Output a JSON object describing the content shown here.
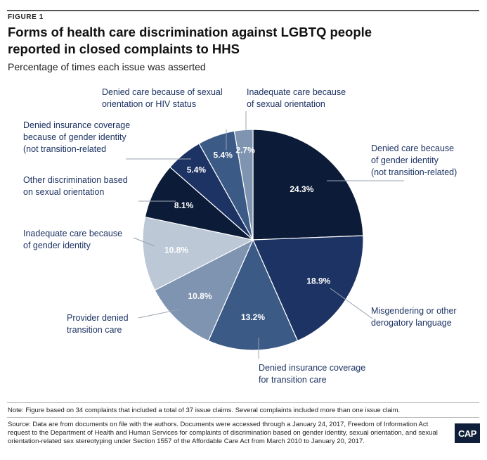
{
  "figure_label": "FIGURE 1",
  "title": "Forms of health care discrimination against LGBTQ people reported in closed complaints to HHS",
  "subtitle": "Percentage of times each issue was asserted",
  "note": "Note: Figure based on 34 complaints that included a total of 37 issue claims. Several complaints included more than one issue claim.",
  "source": "Source: Data are from documents on file with the authors. Documents were accessed through a January 24, 2017, Freedom of Information Act request to the Department of Health and Human Services for complaints of discrimination based on gender identity, sexual orientation, and sexual orientation-related sex stereotyping under Section 1557 of the Affordable Care Act from March 2010 to January 20, 2017.",
  "logo_text": "CAP",
  "chart_data": {
    "type": "pie",
    "title": "Forms of health care discrimination against LGBTQ people reported in closed complaints to HHS",
    "subtitle": "Percentage of times each issue was asserted",
    "unit": "%",
    "start": "12 o'clock, clockwise",
    "slices": [
      {
        "label": [
          "Denied care because",
          "of gender identity",
          "(not transition-related)"
        ],
        "value": 24.3,
        "value_label": "24.3%",
        "color": "#0c1c38",
        "text_color": "#ffffff"
      },
      {
        "label": [
          "Misgendering or other",
          "derogatory language"
        ],
        "value": 18.9,
        "value_label": "18.9%",
        "color": "#1d3363",
        "text_color": "#ffffff"
      },
      {
        "label": [
          "Denied insurance coverage",
          "for transition care"
        ],
        "value": 13.2,
        "value_label": "13.2%",
        "color": "#3c5a86",
        "text_color": "#ffffff"
      },
      {
        "label": [
          "Provider denied",
          "transition care"
        ],
        "value": 10.8,
        "value_label": "10.8%",
        "color": "#7e94b1",
        "text_color": "#ffffff"
      },
      {
        "label": [
          "Inadequate care because",
          "of gender identity"
        ],
        "value": 10.8,
        "value_label": "10.8%",
        "color": "#bcc8d6",
        "text_color": "#ffffff"
      },
      {
        "label": [
          "Other discrimination based",
          "on sexual orientation"
        ],
        "value": 8.1,
        "value_label": "8.1%",
        "color": "#0c1c38",
        "text_color": "#ffffff"
      },
      {
        "label": [
          "Denied insurance coverage",
          "because of gender identity",
          "(not transition-related"
        ],
        "value": 5.4,
        "value_label": "5.4%",
        "color": "#1d3363",
        "text_color": "#ffffff"
      },
      {
        "label": [
          "Denied care because of sexual",
          "orientation or HIV status"
        ],
        "value": 5.4,
        "value_label": "5.4%",
        "color": "#3c5a86",
        "text_color": "#ffffff"
      },
      {
        "label": [
          "Inadequate care because",
          "of sexual orientation"
        ],
        "value": 2.7,
        "value_label": "2.7%",
        "color": "#7e94b1",
        "text_color": "#ffffff"
      }
    ],
    "label_color": "#1d3363",
    "legend": "none"
  }
}
